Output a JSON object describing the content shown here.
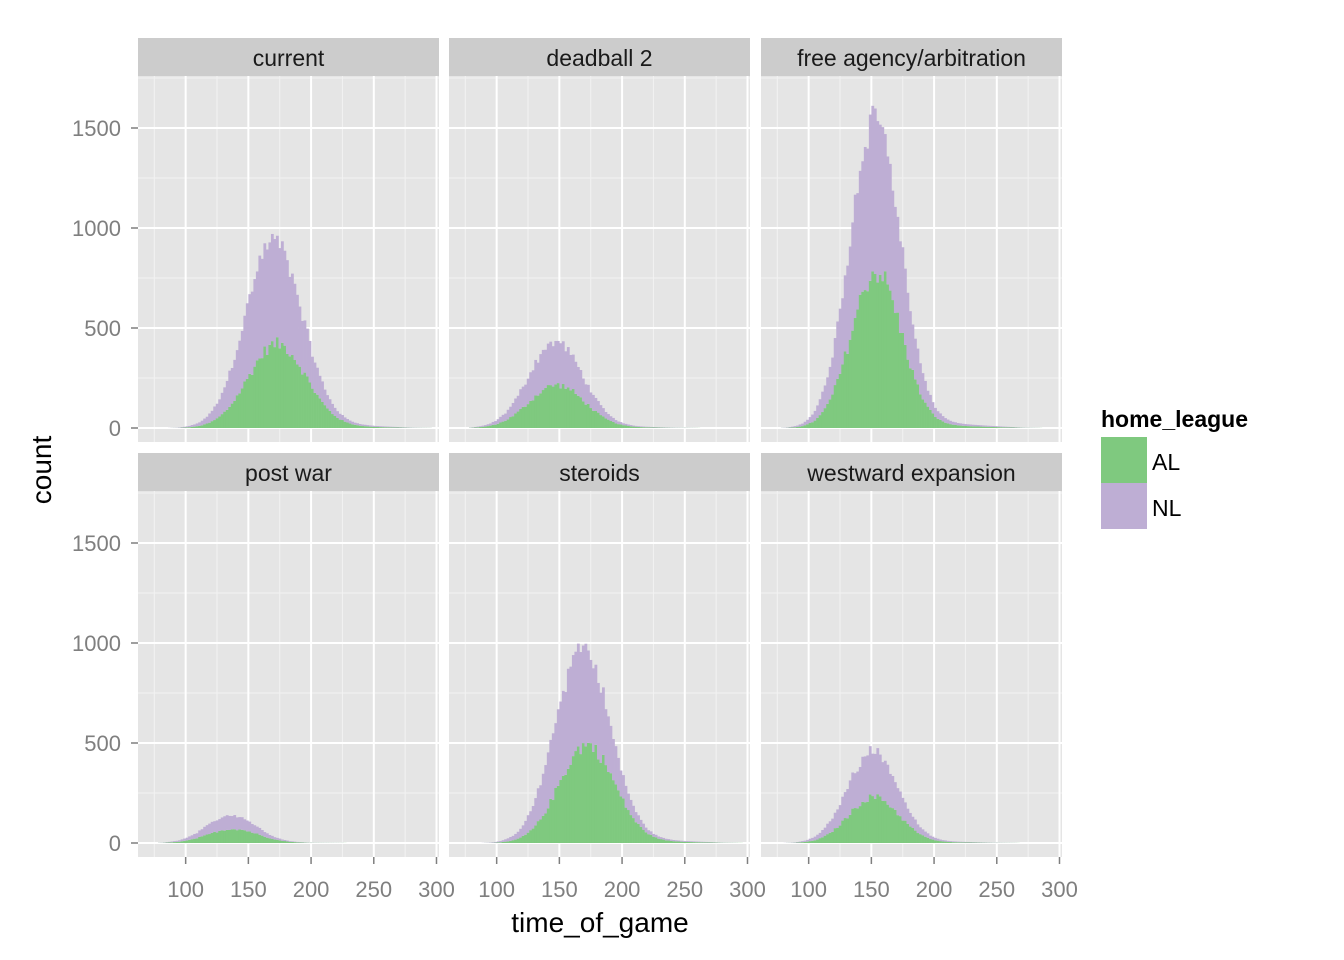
{
  "chart_data": {
    "type": "histogram",
    "stacked": true,
    "x_label": "time_of_game",
    "y_label": "count",
    "x_ticks": [
      100,
      150,
      200,
      250,
      300
    ],
    "y_ticks": [
      0,
      500,
      1000,
      1500
    ],
    "x_range": [
      62,
      302
    ],
    "y_range": [
      -70,
      1760
    ],
    "bin_width": 2,
    "grid": true,
    "legend": {
      "title": "home_league",
      "position": "right",
      "entries": [
        {
          "label": "AL",
          "color": "#7fc97f"
        },
        {
          "label": "NL",
          "color": "#beaed4"
        }
      ]
    },
    "facets": [
      {
        "title": "current",
        "al": {
          "center": 173,
          "sd": 23,
          "peak": 420
        },
        "nl": {
          "center": 168,
          "sd": 22,
          "peak": 520
        }
      },
      {
        "title": "deadball 2",
        "al": {
          "center": 148,
          "sd": 22,
          "peak": 215
        },
        "nl": {
          "center": 146,
          "sd": 21,
          "peak": 215
        }
      },
      {
        "title": "free agency/arbitration",
        "al": {
          "center": 154,
          "sd": 20,
          "peak": 780
        },
        "nl": {
          "center": 152,
          "sd": 20,
          "peak": 780
        }
      },
      {
        "title": "post war",
        "al": {
          "center": 138,
          "sd": 20,
          "peak": 70
        },
        "nl": {
          "center": 135,
          "sd": 19,
          "peak": 70
        }
      },
      {
        "title": "steroids",
        "al": {
          "center": 172,
          "sd": 22,
          "peak": 490
        },
        "nl": {
          "center": 165,
          "sd": 21,
          "peak": 500
        }
      },
      {
        "title": "westward expansion",
        "al": {
          "center": 152,
          "sd": 20,
          "peak": 230
        },
        "nl": {
          "center": 150,
          "sd": 20,
          "peak": 230
        }
      }
    ]
  }
}
